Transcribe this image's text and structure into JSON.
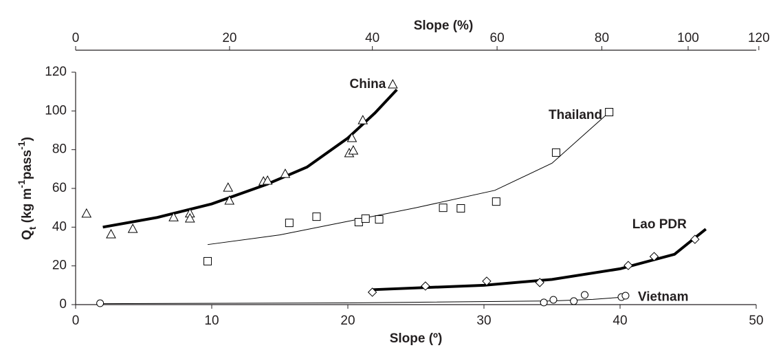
{
  "chart_data": {
    "type": "scatter",
    "xlabel": "Slope (º)",
    "x2label": "Slope (%)",
    "ylabel": [
      {
        "text": "Q"
      },
      {
        "text": "t",
        "shift": "sub"
      },
      {
        "text": " (kg m"
      },
      {
        "text": "-1",
        "shift": "super"
      },
      {
        "text": "pass"
      },
      {
        "text": "-1",
        "shift": "super"
      },
      {
        "text": ")"
      }
    ],
    "xlim": [
      0,
      50
    ],
    "xticks": [
      0,
      10,
      20,
      30,
      40,
      50
    ],
    "x2lim": [
      0,
      119.2
    ],
    "x2ticks": [
      0,
      20,
      40,
      60,
      80,
      100,
      120
    ],
    "ylim": [
      0,
      120
    ],
    "yticks": [
      0,
      20,
      40,
      60,
      80,
      100,
      120
    ],
    "series": [
      {
        "name": "China",
        "color": "#000000",
        "marker": "triangle",
        "x": [
          0.8,
          2.6,
          4.2,
          7.2,
          8.4,
          8.4,
          11.2,
          11.3,
          13.8,
          14.1,
          15.4,
          20.1,
          20.4,
          20.3,
          21.1,
          23.3
        ],
        "values": [
          46.9,
          36.2,
          39,
          45,
          47,
          44.4,
          60.3,
          53.6,
          63.5,
          63.9,
          67.4,
          78.1,
          79.5,
          85.9,
          95.1,
          113.6
        ],
        "fit": {
          "line_width": 4,
          "x": [
            2,
            6,
            10,
            14,
            17,
            20,
            22,
            23.6
          ],
          "values": [
            40,
            45,
            52,
            62,
            71,
            86,
            99,
            111
          ]
        }
      },
      {
        "name": "Thailand",
        "color": "#000000",
        "marker": "square",
        "x": [
          9.7,
          15.7,
          17.7,
          20.8,
          21.3,
          22.3,
          27,
          28.3,
          30.9,
          35.3,
          39.2
        ],
        "values": [
          22.4,
          42.2,
          45.4,
          42.6,
          44.4,
          44,
          50,
          49.7,
          53.2,
          78.5,
          99.4
        ],
        "fit": {
          "line_width": 1,
          "x": [
            9.7,
            15,
            20,
            25,
            30.8,
            35,
            39.1
          ],
          "values": [
            31,
            36,
            43,
            50,
            59,
            73,
            98.7
          ]
        }
      },
      {
        "name": "Lao PDR",
        "color": "#000000",
        "marker": "diamond",
        "x": [
          21.8,
          25.7,
          30.2,
          34.1,
          40.6,
          42.5,
          45.5
        ],
        "values": [
          6.4,
          9.6,
          12.1,
          11.4,
          20.2,
          24.8,
          33.7
        ],
        "fit": {
          "line_width": 4,
          "x": [
            21.8,
            30,
            35,
            40,
            44,
            46.3
          ],
          "values": [
            7.7,
            10,
            13,
            18.5,
            26,
            39
          ]
        }
      },
      {
        "name": "Vietnam",
        "color": "#000000",
        "marker": "circle",
        "x": [
          1.8,
          34.4,
          35.1,
          36.6,
          37.4,
          40.1,
          40.4
        ],
        "values": [
          0.7,
          1.1,
          2.5,
          1.8,
          5,
          3.9,
          4.6
        ],
        "fit": {
          "line_width": 1,
          "x": [
            1.8,
            20,
            35,
            38,
            40.5
          ],
          "values": [
            0.5,
            0.9,
            1.9,
            2.7,
            4
          ]
        }
      }
    ]
  }
}
